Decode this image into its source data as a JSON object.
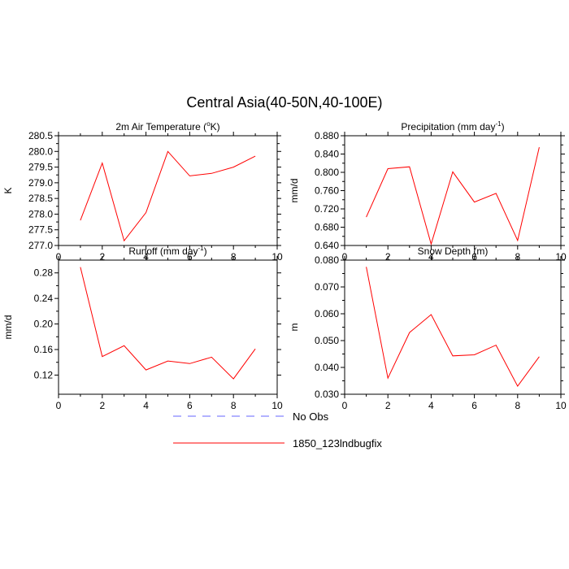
{
  "title": "Central Asia(40-50N,40-100E)",
  "colors": {
    "model": "#ff0000",
    "obs": "#6666ff"
  },
  "legend": [
    {
      "label": "No Obs",
      "style": "dashed",
      "color": "#6666ff"
    },
    {
      "label": "1850_123lndbugfix",
      "style": "solid",
      "color": "#ff0000"
    }
  ],
  "chart_data": [
    {
      "type": "line",
      "title_main": "2m Air Temperature (",
      "title_sup": "o",
      "title_end": "K)",
      "ylabel": "K",
      "xlim": [
        0,
        10
      ],
      "ylim": [
        277.0,
        280.5
      ],
      "xticks": [
        0,
        2,
        4,
        6,
        8,
        10
      ],
      "yticks": [
        "277.0",
        "277.5",
        "278.0",
        "278.5",
        "279.0",
        "279.5",
        "280.0",
        "280.5"
      ],
      "series": [
        {
          "x": [
            1,
            2,
            3,
            4,
            5,
            6,
            7,
            8,
            9
          ],
          "y": [
            277.8,
            279.63,
            277.15,
            278.05,
            280.0,
            279.22,
            279.3,
            279.5,
            279.85
          ]
        }
      ]
    },
    {
      "type": "line",
      "title_main": "Precipitation (mm day",
      "title_sup": "-1",
      "title_end": ")",
      "ylabel": "mm/d",
      "xlim": [
        0,
        10
      ],
      "ylim": [
        0.64,
        0.88
      ],
      "xticks": [
        0,
        2,
        4,
        6,
        8,
        10
      ],
      "yticks": [
        "0.640",
        "0.680",
        "0.720",
        "0.760",
        "0.800",
        "0.840",
        "0.880"
      ],
      "series": [
        {
          "x": [
            1,
            2,
            3,
            4,
            5,
            6,
            7,
            8,
            9
          ],
          "y": [
            0.702,
            0.808,
            0.812,
            0.643,
            0.801,
            0.735,
            0.754,
            0.651,
            0.855
          ]
        }
      ]
    },
    {
      "type": "line",
      "title_main": "Runoff (mm day",
      "title_sup": "-1",
      "title_end": ")",
      "ylabel": "mm/d",
      "xlim": [
        0,
        10
      ],
      "ylim": [
        0.09,
        0.3
      ],
      "xticks": [
        0,
        2,
        4,
        6,
        8,
        10
      ],
      "yticks": [
        "0.12",
        "0.16",
        "0.20",
        "0.24",
        "0.28"
      ],
      "ytick_values": [
        0.12,
        0.16,
        0.2,
        0.24,
        0.28
      ],
      "series": [
        {
          "x": [
            1,
            2,
            3,
            4,
            5,
            6,
            7,
            8,
            9
          ],
          "y": [
            0.289,
            0.149,
            0.166,
            0.128,
            0.142,
            0.138,
            0.148,
            0.114,
            0.161
          ]
        }
      ]
    },
    {
      "type": "line",
      "title_main": "Snow Depth (m)",
      "title_sup": "",
      "title_end": "",
      "ylabel": "m",
      "xlim": [
        0,
        10
      ],
      "ylim": [
        0.03,
        0.08
      ],
      "xticks": [
        0,
        2,
        4,
        6,
        8,
        10
      ],
      "yticks": [
        "0.030",
        "0.040",
        "0.050",
        "0.060",
        "0.070",
        "0.080"
      ],
      "series": [
        {
          "x": [
            1,
            2,
            3,
            4,
            5,
            6,
            7,
            8,
            9
          ],
          "y": [
            0.0775,
            0.036,
            0.053,
            0.0597,
            0.0443,
            0.0447,
            0.0483,
            0.033,
            0.044
          ]
        }
      ]
    }
  ]
}
